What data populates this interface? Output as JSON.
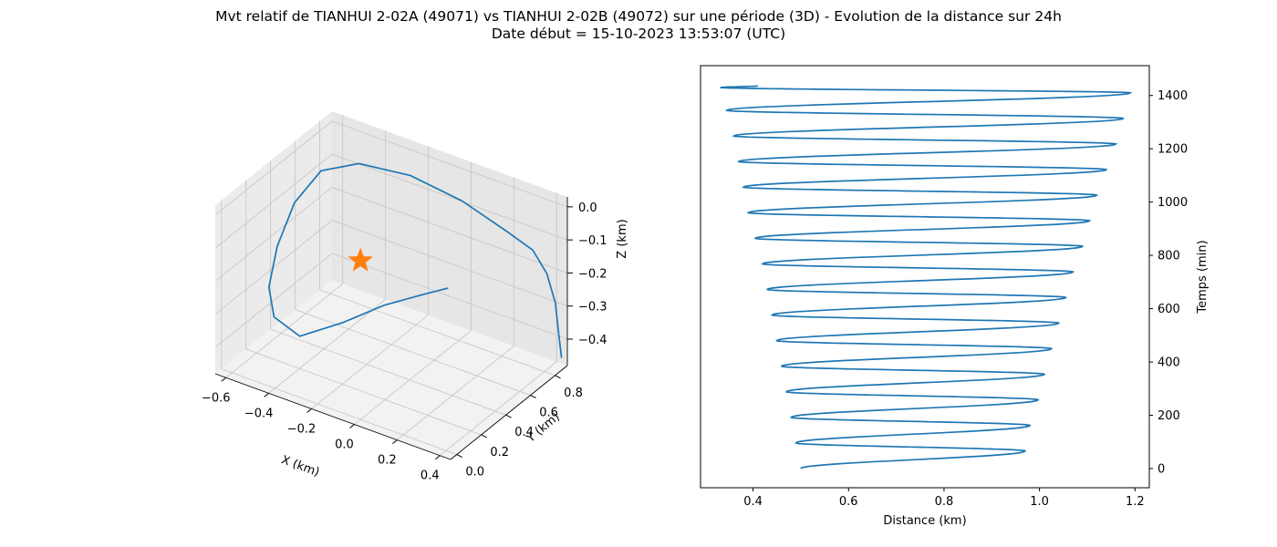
{
  "title": {
    "line1": "Mvt relatif de TIANHUI 2-02A (49071) vs TIANHUI 2-02B (49072) sur une période (3D) - Evolution de la distance sur 24h",
    "line2": "Date début = 15-10-2023 13:53:07 (UTC)"
  },
  "colors": {
    "line": "#1f77b4",
    "marker": "#ff7f0e",
    "grid": "#b0b0b0",
    "pane": "#f2f2f2"
  },
  "chart_data": [
    {
      "type": "line3d",
      "xlabel": "X (km)",
      "ylabel": "Y (km)",
      "zlabel": "Z (km)",
      "x_ticks": [
        "−0.6",
        "−0.4",
        "−0.2",
        "0.0",
        "0.2",
        "0.4"
      ],
      "y_ticks": [
        "0.0",
        "0.2",
        "0.4",
        "0.6",
        "0.8"
      ],
      "z_ticks": [
        "0.0",
        "−0.1",
        "−0.2",
        "−0.3",
        "−0.4"
      ],
      "xlim": [
        -0.65,
        0.45
      ],
      "ylim": [
        -0.05,
        0.9
      ],
      "zlim": [
        -0.48,
        0.03
      ],
      "grid": true,
      "marker": {
        "symbol": "star",
        "x": 0.0,
        "y": 0.0,
        "z": 0.0
      },
      "series": [
        {
          "points": [
            [
              0.14,
              0.47,
              -0.19
            ],
            [
              0.05,
              0.39,
              -0.21
            ],
            [
              -0.05,
              0.28,
              -0.23
            ],
            [
              -0.18,
              0.17,
              -0.28
            ],
            [
              -0.33,
              0.08,
              -0.33
            ],
            [
              -0.45,
              0.08,
              -0.3
            ],
            [
              -0.52,
              0.16,
              -0.25
            ],
            [
              -0.55,
              0.28,
              -0.17
            ],
            [
              -0.55,
              0.42,
              -0.08
            ],
            [
              -0.5,
              0.55,
              -0.01
            ],
            [
              -0.38,
              0.65,
              0.01
            ],
            [
              -0.18,
              0.72,
              0.0
            ],
            [
              0.02,
              0.79,
              -0.05
            ],
            [
              0.2,
              0.85,
              -0.12
            ],
            [
              0.3,
              0.88,
              -0.16
            ],
            [
              0.36,
              0.89,
              -0.22
            ],
            [
              0.4,
              0.89,
              -0.3
            ],
            [
              0.42,
              0.88,
              -0.38
            ],
            [
              0.44,
              0.87,
              -0.45
            ]
          ]
        }
      ]
    },
    {
      "type": "line",
      "xlabel": "Distance (km)",
      "ylabel": "Temps (min)",
      "x_ticks": [
        0.4,
        0.6,
        0.8,
        1.0,
        1.2
      ],
      "y_ticks": [
        0,
        200,
        400,
        600,
        800,
        1000,
        1200,
        1400
      ],
      "xlim": [
        0.29,
        1.23
      ],
      "ylim": [
        -72,
        1512
      ],
      "y_axis_side": "right",
      "grid": false,
      "series": [
        {
          "distance": [
            0.5,
            0.97,
            0.49,
            0.98,
            0.48,
            0.997,
            0.47,
            1.01,
            0.46,
            1.025,
            0.45,
            1.04,
            0.44,
            1.055,
            0.43,
            1.07,
            0.42,
            1.09,
            0.405,
            1.105,
            0.39,
            1.12,
            0.38,
            1.14,
            0.37,
            1.16,
            0.36,
            1.175,
            0.345,
            1.19,
            0.333,
            0.41
          ],
          "time": [
            0,
            66,
            96,
            162,
            192,
            258,
            288,
            354,
            384,
            450,
            480,
            546,
            576,
            642,
            672,
            738,
            768,
            834,
            864,
            930,
            960,
            1026,
            1056,
            1122,
            1152,
            1218,
            1248,
            1314,
            1344,
            1410,
            1430,
            1436
          ],
          "turn_points": [
            {
              "time": 33,
              "distance": 0.66,
              "mid": 0.7
            },
            {
              "time": 129,
              "distance": 0.67,
              "mid": 0.69
            },
            {
              "time": 225,
              "distance": 0.66,
              "mid": 0.68
            },
            {
              "time": 321,
              "distance": 0.66,
              "mid": 0.675
            }
          ]
        }
      ]
    }
  ]
}
